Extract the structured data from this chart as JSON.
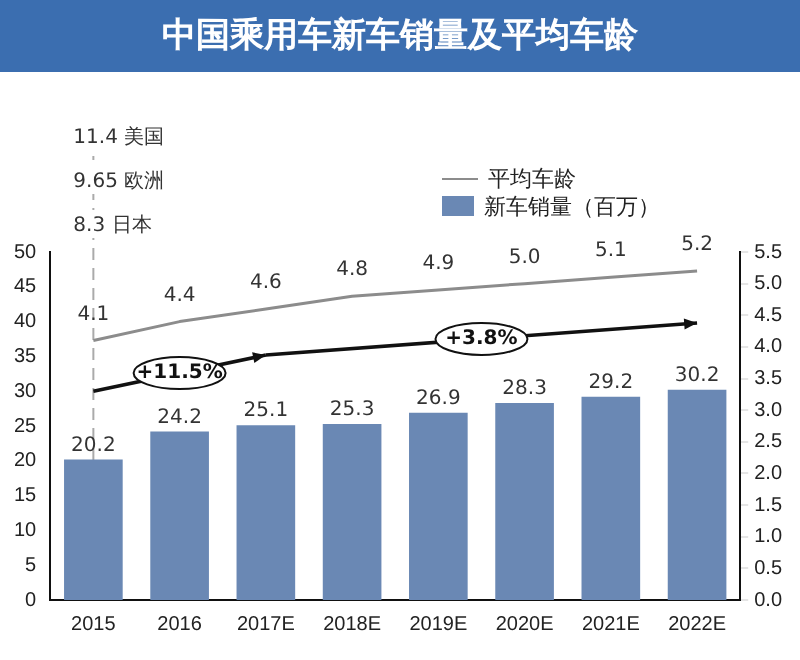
{
  "chart_data": {
    "type": "bar",
    "title": "中国乘用车新车销量及平均车龄",
    "categories": [
      "2015",
      "2016",
      "2017E",
      "2018E",
      "2019E",
      "2020E",
      "2021E",
      "2022E"
    ],
    "series": [
      {
        "name": "平均车龄",
        "type": "line",
        "axis": "y2",
        "color": "#8c8c8c",
        "values": [
          4.1,
          4.4,
          4.6,
          4.8,
          4.9,
          5.0,
          5.1,
          5.2
        ],
        "value_labels": [
          "4.1",
          "4.4",
          "4.6",
          "4.8",
          "4.9",
          "5.0",
          "5.1",
          "5.2"
        ]
      },
      {
        "name": "新车销量（百万）",
        "color": "#6a88b4",
        "values": [
          20.2,
          24.2,
          25.1,
          25.3,
          26.9,
          28.3,
          29.2,
          30.2
        ],
        "value_labels": [
          "20.2",
          "24.2",
          "25.1",
          "25.3",
          "26.9",
          "28.3",
          "29.2",
          "30.2"
        ]
      }
    ],
    "ylim": [
      0,
      50
    ],
    "yticks": [
      0,
      5,
      10,
      15,
      20,
      25,
      30,
      35,
      40,
      45,
      50
    ],
    "y2lim": [
      0,
      5.5
    ],
    "y2ticks": [
      {
        "value": 0,
        "label": "0.0"
      },
      0.5,
      {
        "value": 1,
        "label": "1.0"
      },
      1.5,
      {
        "value": 2,
        "label": "2.0"
      },
      2.5,
      {
        "value": 3,
        "label": "3.0"
      },
      3.5,
      {
        "value": 4,
        "label": "4.0"
      },
      4.5,
      {
        "value": 5,
        "label": "5.0"
      },
      5.5
    ],
    "grid": false,
    "legend": "top right",
    "marker": "none",
    "line_style": "solid",
    "ref_lines": [
      {
        "axis": "x",
        "value": "2015",
        "line_style": "dashed",
        "color": "#aaaaaa"
      }
    ],
    "annotations": [
      "11.4 美国",
      "9.65 欧洲",
      "8.3 日本",
      "+11.5%",
      "+3.8%"
    ]
  }
}
